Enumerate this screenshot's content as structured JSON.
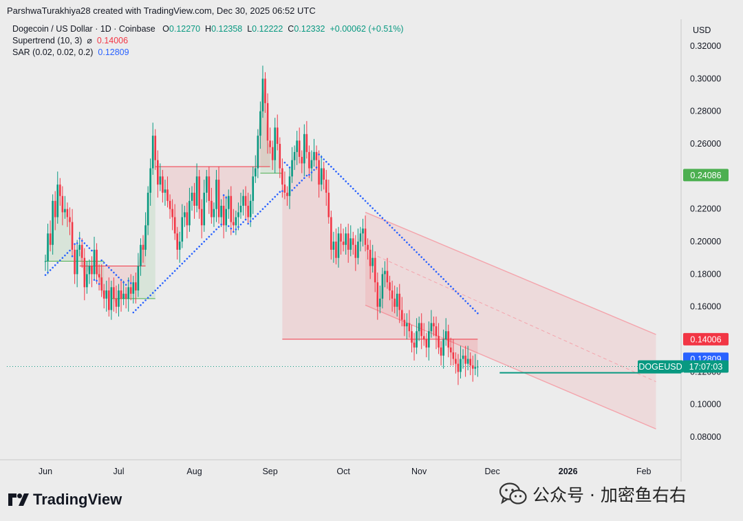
{
  "header": {
    "attribution": "ParshwaTurakhiya28 created with TradingView.com, Dec 30, 2025 06:52 UTC"
  },
  "legend": {
    "symbol": "Dogecoin / US Dollar · 1D · Coinbase",
    "o_label": "O",
    "o": "0.12270",
    "h_label": "H",
    "h": "0.12358",
    "l_label": "L",
    "l": "0.12222",
    "c_label": "C",
    "c": "0.12332",
    "change": "+0.00062 (+0.51%)",
    "supertrend_label": "Supertrend (10, 3)",
    "supertrend_sym": "⌀",
    "supertrend_value": "0.14006",
    "sar_label": "SAR (0.02, 0.02, 0.2)",
    "sar_value": "0.12809"
  },
  "branding": {
    "logo": "TradingView",
    "watermark": "公众号 · 加密鱼右右"
  },
  "chart_data": {
    "type": "candlestick",
    "currency": "USD",
    "ylim": [
      0.07,
      0.33
    ],
    "y_ticks": [
      "0.32000",
      "0.30000",
      "0.28000",
      "0.26000",
      "0.24000",
      "0.22000",
      "0.20000",
      "0.18000",
      "0.16000",
      "0.14000",
      "0.12000",
      "0.10000",
      "0.08000"
    ],
    "x_ticks": [
      {
        "label": "Jun",
        "day": 0
      },
      {
        "label": "Jul",
        "day": 30
      },
      {
        "label": "Aug",
        "day": 61
      },
      {
        "label": "Sep",
        "day": 92
      },
      {
        "label": "Oct",
        "day": 122
      },
      {
        "label": "Nov",
        "day": 153
      },
      {
        "label": "Dec",
        "day": 183
      },
      {
        "label": "2026",
        "day": 214,
        "bold": true
      },
      {
        "label": "Feb",
        "day": 245
      }
    ],
    "price_tags": [
      {
        "name": "level",
        "value": 0.24086,
        "text": "0.24086",
        "color": "#4caf50"
      },
      {
        "name": "supertrend",
        "value": 0.14006,
        "text": "0.14006",
        "color": "#f23645"
      },
      {
        "name": "sar",
        "value": 0.12809,
        "text": "0.12809",
        "color": "#2962ff"
      },
      {
        "name": "last",
        "value": 0.12332,
        "text": "17:07:03",
        "symbol": "DOGEUSD",
        "color": "#089981"
      }
    ],
    "close": [
      0.188,
      0.205,
      0.198,
      0.225,
      0.215,
      0.235,
      0.228,
      0.218,
      0.22,
      0.215,
      0.212,
      0.195,
      0.18,
      0.195,
      0.198,
      0.19,
      0.172,
      0.18,
      0.185,
      0.18,
      0.195,
      0.18,
      0.178,
      0.17,
      0.165,
      0.17,
      0.158,
      0.172,
      0.165,
      0.16,
      0.17,
      0.165,
      0.168,
      0.165,
      0.172,
      0.168,
      0.175,
      0.17,
      0.185,
      0.198,
      0.195,
      0.21,
      0.23,
      0.245,
      0.265,
      0.25,
      0.235,
      0.24,
      0.23,
      0.232,
      0.225,
      0.22,
      0.215,
      0.205,
      0.195,
      0.2,
      0.215,
      0.218,
      0.21,
      0.225,
      0.23,
      0.222,
      0.24,
      0.22,
      0.21,
      0.23,
      0.24,
      0.225,
      0.215,
      0.22,
      0.238,
      0.215,
      0.222,
      0.21,
      0.22,
      0.228,
      0.212,
      0.21,
      0.215,
      0.218,
      0.222,
      0.228,
      0.222,
      0.215,
      0.225,
      0.24,
      0.245,
      0.265,
      0.28,
      0.3,
      0.285,
      0.262,
      0.258,
      0.25,
      0.27,
      0.26,
      0.245,
      0.235,
      0.23,
      0.228,
      0.24,
      0.25,
      0.255,
      0.262,
      0.252,
      0.248,
      0.266,
      0.255,
      0.245,
      0.25,
      0.255,
      0.25,
      0.235,
      0.245,
      0.238,
      0.23,
      0.215,
      0.195,
      0.2,
      0.19,
      0.205,
      0.2,
      0.198,
      0.205,
      0.195,
      0.202,
      0.198,
      0.19,
      0.2,
      0.205,
      0.208,
      0.198,
      0.195,
      0.185,
      0.19,
      0.175,
      0.16,
      0.165,
      0.18,
      0.182,
      0.175,
      0.17,
      0.165,
      0.16,
      0.168,
      0.158,
      0.152,
      0.148,
      0.15,
      0.145,
      0.138,
      0.135,
      0.145,
      0.15,
      0.142,
      0.14,
      0.135,
      0.145,
      0.15,
      0.148,
      0.142,
      0.135,
      0.13,
      0.14,
      0.145,
      0.135,
      0.132,
      0.128,
      0.125,
      0.12,
      0.128,
      0.13,
      0.125,
      0.128,
      0.124,
      0.122,
      0.123,
      0.1233
    ],
    "supertrend": {
      "value": 0.14006,
      "up_segments": [
        {
          "from": 0,
          "to": 24,
          "value": 0.188
        },
        {
          "from": 27,
          "to": 45,
          "value": 0.165
        },
        {
          "from": 88,
          "to": 97,
          "value": 0.242
        }
      ],
      "down_segments": [
        {
          "from": 14,
          "to": 41,
          "value": 0.185
        },
        {
          "from": 45,
          "to": 92,
          "value": 0.246
        },
        {
          "from": 97,
          "to": 198,
          "value": 0.14006
        }
      ]
    },
    "sar": {
      "value": 0.12809
    },
    "channel": {
      "upper": [
        [
          131,
          0.218
        ],
        [
          250,
          0.143
        ]
      ],
      "lower": [
        [
          131,
          0.161
        ],
        [
          250,
          0.085
        ]
      ]
    },
    "support_line": {
      "value": 0.1195
    }
  }
}
